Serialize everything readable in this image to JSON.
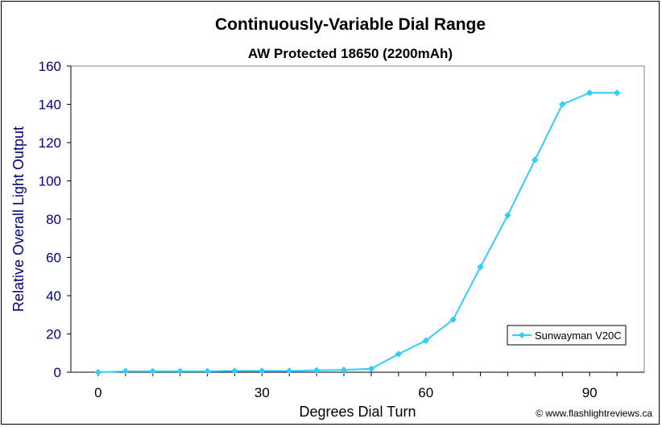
{
  "chart_data": {
    "type": "line",
    "title": "Continuously-Variable Dial Range",
    "subtitle": "AW Protected 18650 (2200mAh)",
    "xlabel": "Degrees Dial Turn",
    "ylabel": "Relative Overall Light Output",
    "xlim": [
      -5,
      100
    ],
    "ylim": [
      0,
      160
    ],
    "xticks": [
      "0",
      "30",
      "60",
      "90"
    ],
    "yticks": [
      "0",
      "20",
      "40",
      "60",
      "80",
      "100",
      "120",
      "140",
      "160"
    ],
    "grid": false,
    "legend_position": "bottom-right",
    "series": [
      {
        "name": "Sunwayman V20C",
        "color": "#33ccff",
        "x": [
          0,
          5,
          10,
          15,
          20,
          25,
          30,
          35,
          40,
          45,
          50,
          55,
          60,
          65,
          70,
          75,
          80,
          85,
          90,
          95
        ],
        "y": [
          0,
          0.5,
          0.5,
          0.5,
          0.5,
          0.7,
          0.7,
          0.7,
          1.0,
          1.2,
          1.8,
          9.5,
          16.5,
          27.5,
          55,
          82,
          111,
          140,
          146,
          146
        ]
      }
    ]
  },
  "credit": "© www.flashlightreviews.ca"
}
